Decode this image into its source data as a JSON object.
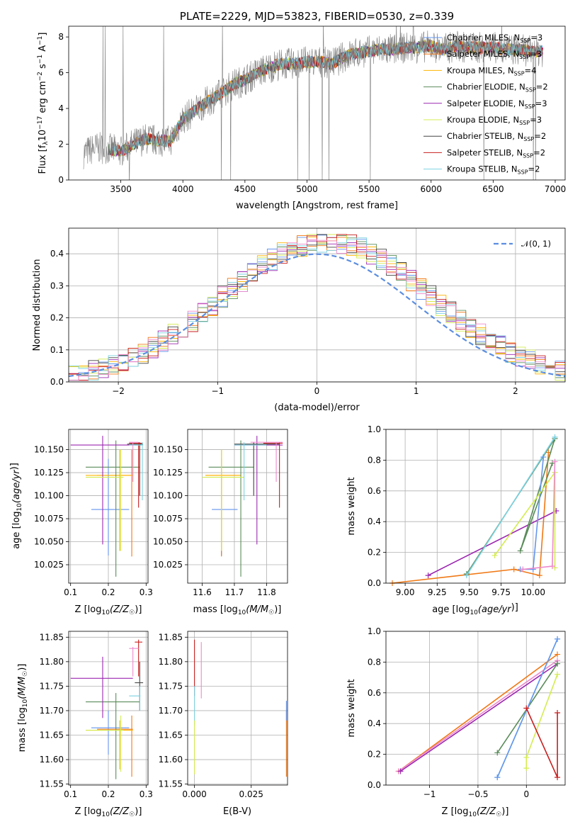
{
  "colors": {
    "Chabrier MILES": "#6495ed",
    "Salpeter MILES": "#f07814",
    "Kroupa MILES": "#ffb400",
    "Chabrier ELODIE": "#5a8c5a",
    "Salpeter ELODIE": "#9c27b0",
    "Kroupa ELODIE": "#d4ec50",
    "Chabrier STELIB": "#444444",
    "Salpeter STELIB": "#c81e1e",
    "Kroupa STELIB": "#7dd2e1",
    "extra_pink": "#ee88cc",
    "data": "#808080"
  },
  "chart_data": [
    {
      "id": "spectrum",
      "type": "line",
      "title": "PLATE=2229, MJD=53823, FIBERID=0530, z=0.339",
      "xlabel": "wavelength [Angstrom, rest frame]",
      "ylabel": "Flux [f_λ 10^-17 erg cm^-2 s^-1 A^-1]",
      "xlim": [
        3080,
        7080
      ],
      "ylim": [
        0,
        8.6
      ],
      "xticks": [
        3500,
        4000,
        4500,
        5000,
        5500,
        6000,
        6500,
        7000
      ],
      "yticks": [
        0,
        2,
        4,
        6,
        8
      ],
      "grid": false,
      "legend_position": "upper right",
      "legend": [
        {
          "model": "Chabrier MILES",
          "nssp": "3"
        },
        {
          "model": "Salpeter MILES",
          "nssp": "3"
        },
        {
          "model": "Kroupa MILES",
          "nssp": "4"
        },
        {
          "model": "Chabrier ELODIE",
          "nssp": "2"
        },
        {
          "model": "Salpeter ELODIE",
          "nssp": "3"
        },
        {
          "model": "Kroupa ELODIE",
          "nssp": "3"
        },
        {
          "model": "Chabrier STELIB",
          "nssp": "2"
        },
        {
          "model": "Salpeter STELIB",
          "nssp": "2"
        },
        {
          "model": "Kroupa STELIB",
          "nssp": "2"
        }
      ],
      "continuum": [
        [
          3200,
          1.5
        ],
        [
          3300,
          1.8
        ],
        [
          3400,
          1.75
        ],
        [
          3500,
          1.6
        ],
        [
          3600,
          2.0
        ],
        [
          3700,
          2.3
        ],
        [
          3800,
          2.2
        ],
        [
          3900,
          2.2
        ],
        [
          4000,
          3.4
        ],
        [
          4100,
          3.9
        ],
        [
          4200,
          4.4
        ],
        [
          4300,
          4.8
        ],
        [
          4400,
          5.3
        ],
        [
          4500,
          5.6
        ],
        [
          4600,
          6.0
        ],
        [
          4700,
          6.3
        ],
        [
          4800,
          6.5
        ],
        [
          4900,
          6.5
        ],
        [
          5000,
          6.6
        ],
        [
          5100,
          6.6
        ],
        [
          5200,
          6.5
        ],
        [
          5300,
          6.9
        ],
        [
          5400,
          7.1
        ],
        [
          5500,
          7.2
        ],
        [
          5600,
          7.3
        ],
        [
          5700,
          7.3
        ],
        [
          5800,
          7.4
        ],
        [
          5900,
          7.4
        ],
        [
          6000,
          7.5
        ],
        [
          6100,
          7.3
        ],
        [
          6200,
          7.5
        ],
        [
          6300,
          7.4
        ],
        [
          6400,
          7.4
        ],
        [
          6500,
          7.4
        ],
        [
          6600,
          7.3
        ],
        [
          6700,
          7.3
        ],
        [
          6800,
          7.2
        ],
        [
          6900,
          7.2
        ]
      ]
    },
    {
      "id": "residuals",
      "type": "histogram",
      "xlabel": "(data-model)/error",
      "ylabel": "Normed distribution",
      "xlim": [
        -2.5,
        2.5
      ],
      "ylim": [
        0,
        0.48
      ],
      "xticks": [
        -2,
        -1,
        0,
        1,
        2
      ],
      "yticks": [
        0.0,
        0.1,
        0.2,
        0.3,
        0.4
      ],
      "grid": true,
      "legend_position": "upper right",
      "gaussian_label": "𝒩(0, 1)",
      "bin_width": 0.1
    },
    {
      "id": "age_vs_Z",
      "type": "scatter",
      "xlabel": "Z [log10(Z/Z☉)]",
      "ylabel": "age  [log10(age/yr)]",
      "xlim": [
        0.095,
        0.305
      ],
      "ylim": [
        10.005,
        10.172
      ],
      "xticks": [
        0.1,
        0.2,
        0.3
      ],
      "yticks": [
        10.025,
        10.05,
        10.075,
        10.1,
        10.125,
        10.15
      ],
      "grid": true,
      "points": [
        {
          "c": "Chabrier MILES",
          "x": 0.2,
          "xe": [
            0.155,
            0.255
          ],
          "y": 10.085,
          "ye": [
            10.035,
            10.14
          ]
        },
        {
          "c": "Salpeter MILES",
          "x": 0.262,
          "xe": [
            0.17,
            0.265
          ],
          "y": 10.122,
          "ye": [
            10.034,
            10.15
          ]
        },
        {
          "c": "Kroupa MILES",
          "x": 0.23,
          "xe": [
            0.14,
            0.265
          ],
          "y": 10.122,
          "ye": [
            10.04,
            10.15
          ]
        },
        {
          "c": "Chabrier ELODIE",
          "x": 0.22,
          "xe": [
            0.14,
            0.283
          ],
          "y": 10.131,
          "ye": [
            10.012,
            10.16
          ]
        },
        {
          "c": "Salpeter ELODIE",
          "x": 0.185,
          "xe": [
            0.1,
            0.286
          ],
          "y": 10.155,
          "ye": [
            10.047,
            10.165
          ]
        },
        {
          "c": "Kroupa ELODIE",
          "x": 0.233,
          "xe": [
            0.14,
            0.24
          ],
          "y": 10.12,
          "ye": [
            10.04,
            10.15
          ]
        },
        {
          "c": "Chabrier STELIB",
          "x": 0.283,
          "xe": [
            0.25,
            0.292
          ],
          "y": 10.156,
          "ye": [
            10.1,
            10.158
          ]
        },
        {
          "c": "Salpeter STELIB",
          "x": 0.28,
          "xe": [
            0.255,
            0.29
          ],
          "y": 10.157,
          "ye": [
            10.087,
            10.158
          ]
        },
        {
          "c": "Kroupa STELIB",
          "x": 0.29,
          "xe": [
            0.255,
            0.292
          ],
          "y": 10.155,
          "ye": [
            10.095,
            10.158
          ]
        },
        {
          "c": "extra_pink",
          "x": 0.265,
          "xe": [
            0.255,
            0.28
          ],
          "y": 10.158,
          "ye": [
            10.115,
            10.158
          ]
        }
      ]
    },
    {
      "id": "age_vs_mass",
      "type": "scatter",
      "xlabel": "mass [log10(M/M☉)]",
      "ylabel": "",
      "xlim": [
        11.555,
        11.865
      ],
      "ylim": [
        10.005,
        10.172
      ],
      "xticks": [
        11.6,
        11.7,
        11.8
      ],
      "yticks": [
        10.025,
        10.05,
        10.075,
        10.1,
        10.125,
        10.15
      ],
      "grid": true,
      "points": [
        {
          "c": "Chabrier MILES",
          "x": 11.66,
          "xe": [
            11.63,
            11.71
          ],
          "y": 10.085,
          "ye": [
            10.035,
            10.14
          ]
        },
        {
          "c": "Salpeter MILES",
          "x": 11.66,
          "xe": [
            11.61,
            11.72
          ],
          "y": 10.122,
          "ye": [
            10.034,
            10.15
          ]
        },
        {
          "c": "Kroupa MILES",
          "x": 11.66,
          "xe": [
            11.61,
            11.72
          ],
          "y": 10.122,
          "ye": [
            10.04,
            10.15
          ]
        },
        {
          "c": "Chabrier ELODIE",
          "x": 11.72,
          "xe": [
            11.62,
            11.76
          ],
          "y": 10.131,
          "ye": [
            10.012,
            10.16
          ]
        },
        {
          "c": "Salpeter ELODIE",
          "x": 11.77,
          "xe": [
            11.7,
            11.85
          ],
          "y": 10.155,
          "ye": [
            10.047,
            10.165
          ]
        },
        {
          "c": "Kroupa ELODIE",
          "x": 11.66,
          "xe": [
            11.6,
            11.73
          ],
          "y": 10.12,
          "ye": [
            10.04,
            10.15
          ]
        },
        {
          "c": "Chabrier STELIB",
          "x": 11.76,
          "xe": [
            11.7,
            11.84
          ],
          "y": 10.156,
          "ye": [
            10.1,
            10.158
          ]
        },
        {
          "c": "Salpeter STELIB",
          "x": 11.84,
          "xe": [
            11.79,
            11.85
          ],
          "y": 10.157,
          "ye": [
            10.087,
            10.158
          ]
        },
        {
          "c": "Kroupa STELIB",
          "x": 11.73,
          "xe": [
            11.7,
            11.8
          ],
          "y": 10.155,
          "ye": [
            10.095,
            10.158
          ]
        },
        {
          "c": "extra_pink",
          "x": 11.83,
          "xe": [
            11.75,
            11.85
          ],
          "y": 10.158,
          "ye": [
            10.115,
            10.158
          ]
        }
      ]
    },
    {
      "id": "mass_weight_vs_age",
      "type": "line",
      "xlabel": "age  [log10(age/yr)]",
      "ylabel": "mass weight",
      "xlim": [
        8.85,
        10.25
      ],
      "ylim": [
        0,
        1.0
      ],
      "xticks": [
        9.0,
        9.25,
        9.5,
        9.75,
        10.0
      ],
      "xtick_labels": [
        "9.00",
        "9.25",
        "9.50",
        "9.75",
        "10.00"
      ],
      "yticks": [
        0.0,
        0.2,
        0.4,
        0.6,
        0.8,
        1.0
      ],
      "grid": true,
      "series": [
        {
          "c": "Salpeter MILES",
          "points": [
            [
              8.9,
              0.0
            ],
            [
              9.85,
              0.09
            ],
            [
              10.05,
              0.05
            ],
            [
              10.12,
              0.85
            ]
          ]
        },
        {
          "c": "Salpeter ELODIE",
          "points": [
            [
              9.18,
              0.05
            ],
            [
              10.18,
              0.47
            ]
          ]
        },
        {
          "c": "Chabrier ELODIE",
          "points": [
            [
              9.48,
              0.06
            ],
            [
              10.17,
              0.94
            ],
            [
              9.9,
              0.21
            ],
            [
              10.15,
              0.78
            ]
          ]
        },
        {
          "c": "Kroupa STELIB",
          "points": [
            [
              9.48,
              0.05
            ],
            [
              10.17,
              0.95
            ]
          ]
        },
        {
          "c": "Chabrier MILES",
          "points": [
            [
              9.9,
              0.09
            ],
            [
              10.0,
              0.09
            ],
            [
              10.08,
              0.82
            ]
          ]
        },
        {
          "c": "Kroupa ELODIE",
          "points": [
            [
              9.7,
              0.18
            ],
            [
              10.17,
              0.72
            ],
            [
              10.17,
              0.1
            ]
          ]
        },
        {
          "c": "extra_pink",
          "points": [
            [
              9.92,
              0.09
            ],
            [
              10.15,
              0.11
            ],
            [
              10.17,
              0.79
            ]
          ]
        }
      ]
    },
    {
      "id": "mass_vs_Z",
      "type": "scatter",
      "xlabel": "Z [log10(Z/Z☉)]",
      "ylabel": "mass [log10(M/M☉)]",
      "xlim": [
        0.095,
        0.305
      ],
      "ylim": [
        11.548,
        11.862
      ],
      "xticks": [
        0.1,
        0.2,
        0.3
      ],
      "yticks": [
        11.55,
        11.6,
        11.65,
        11.7,
        11.75,
        11.8,
        11.85
      ],
      "grid": true,
      "points": [
        {
          "c": "Chabrier MILES",
          "x": 0.2,
          "xe": [
            0.155,
            0.255
          ],
          "y": 11.665,
          "ye": [
            11.61,
            11.7
          ]
        },
        {
          "c": "Salpeter MILES",
          "x": 0.262,
          "xe": [
            0.17,
            0.265
          ],
          "y": 11.662,
          "ye": [
            11.565,
            11.69
          ]
        },
        {
          "c": "Kroupa MILES",
          "x": 0.23,
          "xe": [
            0.14,
            0.265
          ],
          "y": 11.66,
          "ye": [
            11.58,
            11.68
          ]
        },
        {
          "c": "Chabrier ELODIE",
          "x": 0.22,
          "xe": [
            0.14,
            0.283
          ],
          "y": 11.718,
          "ye": [
            11.56,
            11.736
          ]
        },
        {
          "c": "Salpeter ELODIE",
          "x": 0.185,
          "xe": [
            0.1,
            0.265
          ],
          "y": 11.766,
          "ye": [
            11.685,
            11.81
          ]
        },
        {
          "c": "Kroupa ELODIE",
          "x": 0.233,
          "xe": [
            0.14,
            0.24
          ],
          "y": 11.66,
          "ye": [
            11.575,
            11.69
          ]
        },
        {
          "c": "Chabrier STELIB",
          "x": 0.283,
          "xe": [
            0.27,
            0.292
          ],
          "y": 11.757,
          "ye": [
            11.7,
            11.8
          ]
        },
        {
          "c": "Salpeter STELIB",
          "x": 0.28,
          "xe": [
            0.27,
            0.29
          ],
          "y": 11.84,
          "ye": [
            11.77,
            11.845
          ]
        },
        {
          "c": "Kroupa STELIB",
          "x": 0.283,
          "xe": [
            0.255,
            0.285
          ],
          "y": 11.73,
          "ye": [
            11.7,
            11.75
          ]
        },
        {
          "c": "extra_pink",
          "x": 0.265,
          "xe": [
            0.255,
            0.28
          ],
          "y": 11.827,
          "ye": [
            11.77,
            11.83
          ]
        }
      ]
    },
    {
      "id": "mass_vs_ebv",
      "type": "scatter",
      "xlabel": "E(B-V)",
      "ylabel": "",
      "xlim": [
        -0.003,
        0.041
      ],
      "ylim": [
        11.548,
        11.862
      ],
      "xticks": [
        0.0,
        0.025
      ],
      "xtick_labels": [
        "0.000",
        "0.025"
      ],
      "yticks": [
        11.55,
        11.6,
        11.65,
        11.7,
        11.75,
        11.8,
        11.85
      ],
      "grid": true,
      "points": [
        {
          "c": "Salpeter STELIB",
          "x": 0.0,
          "ye": [
            11.73,
            11.845
          ]
        },
        {
          "c": "extra_pink",
          "x": 0.003,
          "ye": [
            11.725,
            11.84
          ]
        },
        {
          "c": "Kroupa STELIB",
          "x": 0.0,
          "ye": [
            11.67,
            11.75
          ]
        },
        {
          "c": "Kroupa ELODIE",
          "x": 0.0,
          "ye": [
            11.57,
            11.68
          ]
        },
        {
          "c": "Salpeter MILES",
          "x": 0.0405,
          "ye": [
            11.565,
            11.7
          ]
        },
        {
          "c": "Chabrier MILES",
          "x": 0.0405,
          "ye": [
            11.68,
            11.72
          ]
        }
      ]
    },
    {
      "id": "mass_weight_vs_Z",
      "type": "line",
      "xlabel": "Z [log10(Z/Z☉)]",
      "ylabel": "mass weight",
      "xlim": [
        -1.45,
        0.4
      ],
      "ylim": [
        0,
        1.0
      ],
      "xticks": [
        -1.0,
        -0.5,
        0.0
      ],
      "yticks": [
        0.0,
        0.2,
        0.4,
        0.6,
        0.8,
        1.0
      ],
      "grid": true,
      "series": [
        {
          "c": "Salpeter MILES",
          "points": [
            [
              -1.32,
              0.09
            ],
            [
              0.32,
              0.85
            ]
          ]
        },
        {
          "c": "extra_pink",
          "points": [
            [
              -1.32,
              0.09
            ],
            [
              0.32,
              0.81
            ]
          ]
        },
        {
          "c": "Salpeter ELODIE",
          "points": [
            [
              -1.3,
              0.09
            ],
            [
              0.32,
              0.79
            ]
          ]
        },
        {
          "c": "Chabrier ELODIE",
          "points": [
            [
              -0.3,
              0.21
            ],
            [
              0.32,
              0.79
            ]
          ]
        },
        {
          "c": "Kroupa STELIB",
          "points": [
            [
              -0.3,
              0.05
            ],
            [
              0.32,
              0.95
            ]
          ]
        },
        {
          "c": "Chabrier MILES",
          "points": [
            [
              -0.3,
              0.05
            ],
            [
              0.32,
              0.95
            ]
          ]
        },
        {
          "c": "Kroupa ELODIE",
          "points": [
            [
              0.0,
              0.11
            ],
            [
              0.0,
              0.18
            ],
            [
              0.32,
              0.72
            ]
          ]
        },
        {
          "c": "Salpeter STELIB",
          "points": [
            [
              0.0,
              0.5
            ],
            [
              0.32,
              0.05
            ],
            [
              0.32,
              0.47
            ]
          ]
        }
      ]
    }
  ]
}
